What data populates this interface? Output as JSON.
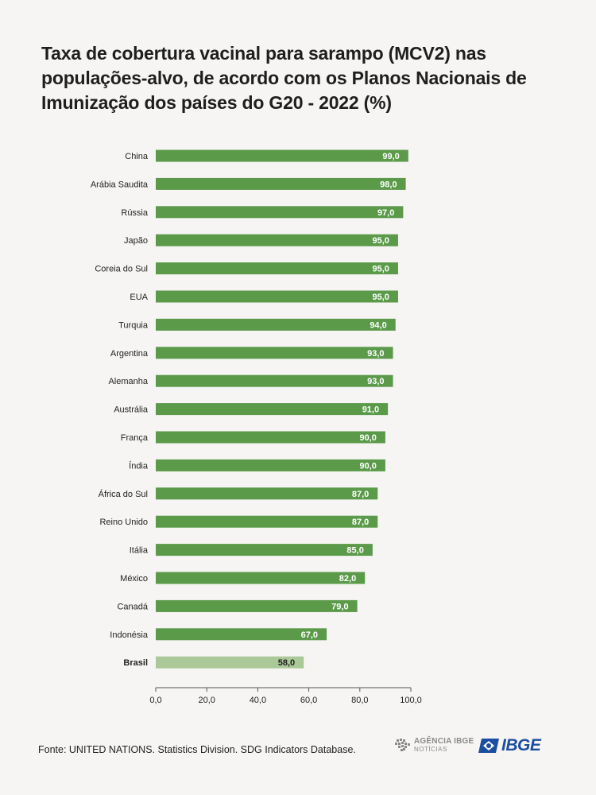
{
  "title": "Taxa de cobertura vacinal para sarampo (MCV2) nas populações-alvo, de acordo com os Planos Nacionais de Imunização dos países do G20 - 2022 (%)",
  "source": "Fonte: UNITED NATIONS. Statistics Division. SDG Indicators Database.",
  "logos": {
    "agencia_top": "AGÊNCIA IBGE",
    "agencia_bottom": "NOTÍCIAS",
    "ibge": "IBGE"
  },
  "colors": {
    "bar": "#5a9a49",
    "highlight_bar": "#abc898",
    "axis": "#555555",
    "brand_blue": "#1c4ea0"
  },
  "chart_data": {
    "type": "bar",
    "orientation": "horizontal",
    "title": "Taxa de cobertura vacinal para sarampo (MCV2) nas populações-alvo, de acordo com os Planos Nacionais de Imunização dos países do G20 - 2022 (%)",
    "categories": [
      "China",
      "Arábia Saudita",
      "Rússia",
      "Japão",
      "Coreia do Sul",
      "EUA",
      "Turquia",
      "Argentina",
      "Alemanha",
      "Austrália",
      "França",
      "Índia",
      "África do Sul",
      "Reino Unido",
      "Itália",
      "México",
      "Canadá",
      "Indonésia",
      "Brasil"
    ],
    "values": [
      99.0,
      98.0,
      97.0,
      95.0,
      95.0,
      95.0,
      94.0,
      93.0,
      93.0,
      91.0,
      90.0,
      90.0,
      87.0,
      87.0,
      85.0,
      82.0,
      79.0,
      67.0,
      58.0
    ],
    "value_labels": [
      "99,0",
      "98,0",
      "97,0",
      "95,0",
      "95,0",
      "95,0",
      "94,0",
      "93,0",
      "93,0",
      "91,0",
      "90,0",
      "90,0",
      "87,0",
      "87,0",
      "85,0",
      "82,0",
      "79,0",
      "67,0",
      "58,0"
    ],
    "highlight": "Brasil",
    "xlim": [
      0,
      100
    ],
    "xticks": [
      0,
      20,
      40,
      60,
      80,
      100
    ],
    "xtick_labels": [
      "0,0",
      "20,0",
      "40,0",
      "60,0",
      "80,0",
      "100,0"
    ],
    "xlabel": "",
    "ylabel": "",
    "grid": false,
    "legend": "none"
  }
}
